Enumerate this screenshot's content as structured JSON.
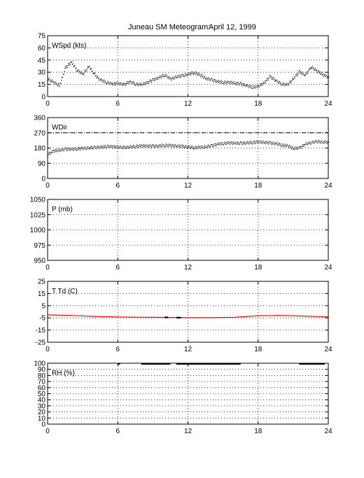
{
  "title_station": "Juneau SM Meteogram:",
  "title_date": "April 12, 1999",
  "chart_data": [
    {
      "type": "scatter",
      "label": "WSpd (kts)",
      "xlim": [
        0,
        24
      ],
      "ylim": [
        0,
        75
      ],
      "xticks": [
        0,
        6,
        12,
        18,
        24
      ],
      "yticks": [
        0,
        15,
        30,
        45,
        60,
        75
      ],
      "grid": true,
      "series": [
        {
          "color": "#000000",
          "x": [
            0,
            0.5,
            1,
            1.5,
            2,
            2.5,
            3,
            3.5,
            4,
            4.5,
            5,
            5.5,
            6,
            6.5,
            7,
            7.5,
            8,
            8.5,
            9,
            9.5,
            10,
            10.5,
            11,
            11.5,
            12,
            12.5,
            13,
            13.5,
            14,
            14.5,
            15,
            15.5,
            16,
            16.5,
            17,
            17.5,
            18,
            18.5,
            19,
            19.5,
            20,
            20.5,
            21,
            21.5,
            22,
            22.5,
            23,
            23.5,
            24
          ],
          "values": [
            22,
            18,
            14,
            36,
            43,
            33,
            28,
            38,
            27,
            21,
            18,
            16,
            17,
            15,
            19,
            16,
            15,
            18,
            21,
            24,
            27,
            22,
            25,
            26,
            28,
            30,
            27,
            23,
            21,
            19,
            18,
            18,
            17,
            16,
            14,
            12,
            13,
            18,
            25,
            20,
            16,
            15,
            23,
            31,
            27,
            37,
            32,
            28,
            24
          ]
        }
      ]
    },
    {
      "type": "scatter",
      "label": "WDir",
      "xlim": [
        0,
        24
      ],
      "ylim": [
        0,
        360
      ],
      "xticks": [
        0,
        6,
        12,
        18,
        24
      ],
      "yticks": [
        0,
        90,
        180,
        270,
        360
      ],
      "ytick_labels": [
        "0",
        "90",
        "180",
        "270",
        "360"
      ],
      "ref_line": 270,
      "grid": true,
      "series": [
        {
          "color": "#000000",
          "x": [
            0,
            0.5,
            1,
            1.5,
            2,
            2.5,
            3,
            3.5,
            4,
            4.5,
            5,
            5.5,
            6,
            6.5,
            7,
            7.5,
            8,
            8.5,
            9,
            9.5,
            10,
            10.5,
            11,
            11.5,
            12,
            12.5,
            13,
            13.5,
            14,
            14.5,
            15,
            15.5,
            16,
            16.5,
            17,
            17.5,
            18,
            18.5,
            19,
            19.5,
            20,
            20.5,
            21,
            21.5,
            22,
            22.5,
            23,
            23.5,
            24
          ],
          "values": [
            145,
            165,
            170,
            175,
            175,
            178,
            180,
            183,
            185,
            188,
            192,
            190,
            188,
            185,
            188,
            192,
            195,
            195,
            193,
            195,
            198,
            197,
            195,
            192,
            188,
            185,
            186,
            190,
            195,
            205,
            210,
            212,
            212,
            210,
            213,
            215,
            218,
            216,
            212,
            208,
            200,
            195,
            180,
            182,
            205,
            215,
            220,
            218,
            216
          ]
        }
      ]
    },
    {
      "type": "line",
      "label": "P (mb)",
      "xlim": [
        0,
        24
      ],
      "ylim": [
        950,
        1050
      ],
      "xticks": [
        0,
        6,
        12,
        18,
        24
      ],
      "yticks": [
        950,
        975,
        1000,
        1025,
        1050
      ],
      "grid": true,
      "series": []
    },
    {
      "type": "line",
      "label": "T Td (C)",
      "xlim": [
        0,
        24
      ],
      "ylim": [
        -25,
        25
      ],
      "xticks": [
        0,
        6,
        12,
        18,
        24
      ],
      "yticks": [
        -25,
        -15,
        -5,
        5,
        15,
        25
      ],
      "grid": true,
      "series": [
        {
          "color": "#ff0000",
          "x": [
            0,
            2,
            4,
            6,
            8,
            10,
            12,
            14,
            16,
            18,
            20,
            22,
            24
          ],
          "values": [
            -2.5,
            -3,
            -3.8,
            -4.2,
            -4.5,
            -4.6,
            -4.8,
            -4.8,
            -4.5,
            -3.2,
            -3,
            -3.5,
            -4.2
          ]
        },
        {
          "color": "#000000",
          "x": [
            10.0,
            10.3,
            11.0,
            11.4
          ],
          "values": [
            -4.6,
            -4.6,
            -4.8,
            -4.8
          ],
          "segments": [
            [
              0,
              1
            ],
            [
              2,
              3
            ]
          ]
        }
      ]
    },
    {
      "type": "line",
      "label": "RH (%)",
      "xlim": [
        0,
        24
      ],
      "ylim": [
        0,
        100
      ],
      "xticks": [
        0,
        6,
        12,
        18,
        24
      ],
      "yticks": [
        0,
        10,
        20,
        30,
        40,
        50,
        60,
        70,
        80,
        90,
        100
      ],
      "grid": true,
      "series": [
        {
          "color": "#000000",
          "x": [
            6,
            6.2,
            8,
            10.5,
            11,
            16.5,
            21.5,
            23.7
          ],
          "values": [
            99,
            99,
            99,
            99,
            99,
            99,
            99,
            99
          ],
          "segments": [
            [
              0,
              1
            ],
            [
              2,
              3
            ],
            [
              4,
              5
            ],
            [
              6,
              7
            ]
          ]
        }
      ]
    }
  ]
}
